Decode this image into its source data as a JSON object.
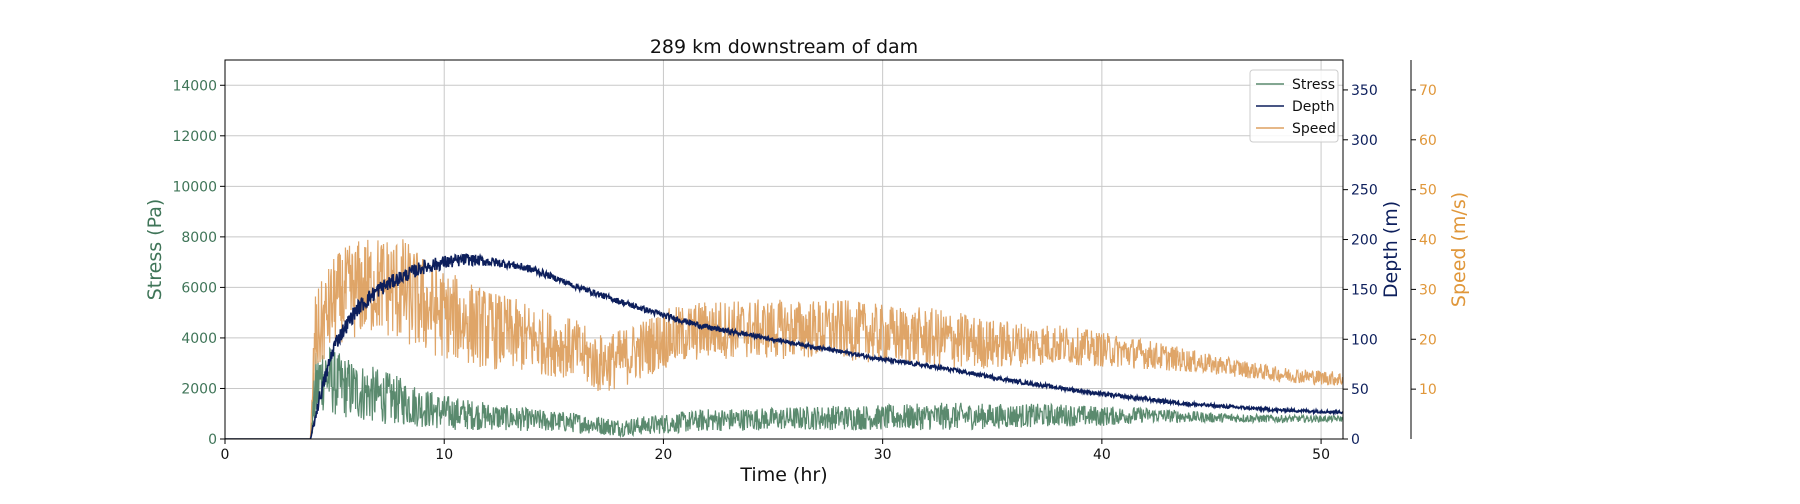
{
  "chart_data": {
    "type": "line",
    "title": "289 km downstream of dam",
    "xlabel": "Time (hr)",
    "xlim": [
      0,
      51
    ],
    "xticks": [
      0,
      10,
      20,
      30,
      40,
      50
    ],
    "grid": true,
    "legend_position": "top-right",
    "axes": {
      "stress": {
        "label": "Stress (Pa)",
        "ylim": [
          0,
          15000
        ],
        "ticks": [
          0,
          2000,
          4000,
          6000,
          8000,
          10000,
          12000,
          14000
        ],
        "color": "#3f7558"
      },
      "depth": {
        "label": "Depth (m)",
        "ylim": [
          0,
          380
        ],
        "ticks": [
          0,
          50,
          100,
          150,
          200,
          250,
          300,
          350
        ],
        "color": "#0d1f5c"
      },
      "speed": {
        "label": "Speed (m/s)",
        "ylim": [
          0,
          76
        ],
        "ticks": [
          10,
          20,
          30,
          40,
          50,
          60,
          70
        ],
        "color": "#e0973a"
      }
    },
    "series": [
      {
        "name": "Stress",
        "axis": "stress",
        "color": "#5a8a6e",
        "x": [
          0,
          3.9,
          4.1,
          4.5,
          5,
          6,
          7,
          8,
          9,
          10,
          12,
          14,
          16,
          18,
          20,
          22,
          25,
          28,
          30,
          33,
          35,
          38,
          40,
          42,
          45,
          48,
          51
        ],
        "y": [
          0,
          0,
          1800,
          2600,
          2200,
          1900,
          1700,
          1500,
          1250,
          1050,
          900,
          750,
          650,
          450,
          600,
          750,
          800,
          850,
          850,
          900,
          900,
          950,
          900,
          950,
          850,
          800,
          800
        ],
        "noise": [
          0,
          0,
          1600,
          1500,
          1300,
          1200,
          1100,
          950,
          800,
          700,
          550,
          450,
          400,
          350,
          400,
          450,
          450,
          500,
          500,
          550,
          500,
          450,
          400,
          300,
          200,
          150,
          120
        ]
      },
      {
        "name": "Depth",
        "axis": "depth",
        "color": "#0d1f5c",
        "x": [
          0,
          3.9,
          4.3,
          5,
          6,
          7,
          8,
          9,
          10,
          11,
          12,
          13,
          14,
          15,
          16,
          18,
          20,
          22,
          25,
          28,
          30,
          33,
          36,
          40,
          44,
          48,
          51
        ],
        "y": [
          0,
          0,
          40,
          95,
          130,
          150,
          162,
          172,
          177,
          180,
          178,
          175,
          170,
          162,
          153,
          138,
          124,
          112,
          100,
          88,
          80,
          70,
          58,
          45,
          35,
          29,
          27
        ],
        "noise": [
          0,
          0,
          8,
          8,
          8,
          8,
          7,
          7,
          7,
          6,
          5,
          4,
          4,
          3,
          3,
          3,
          3,
          3,
          2,
          2,
          2,
          2,
          2,
          2,
          2,
          1.5,
          1.5
        ]
      },
      {
        "name": "Speed",
        "axis": "speed",
        "color": "#dda060",
        "x": [
          0,
          3.9,
          4.1,
          5,
          6,
          7,
          8,
          9,
          10,
          12,
          14,
          16,
          17,
          18,
          20,
          22,
          25,
          28,
          30,
          33,
          35,
          38,
          40,
          42,
          45,
          48,
          51
        ],
        "y": [
          0,
          0,
          20,
          28,
          30,
          31,
          30,
          27,
          25,
          22,
          20,
          18,
          15,
          16,
          20,
          22,
          22,
          22,
          21,
          20,
          19,
          19,
          18,
          17,
          15,
          13,
          12
        ],
        "noise": [
          0,
          0,
          9,
          9,
          10,
          10,
          11,
          10,
          9,
          8,
          7,
          6,
          6,
          6,
          6,
          6,
          6,
          6,
          6,
          6,
          5,
          4,
          3.5,
          3,
          2,
          1.5,
          1.5
        ]
      }
    ]
  }
}
